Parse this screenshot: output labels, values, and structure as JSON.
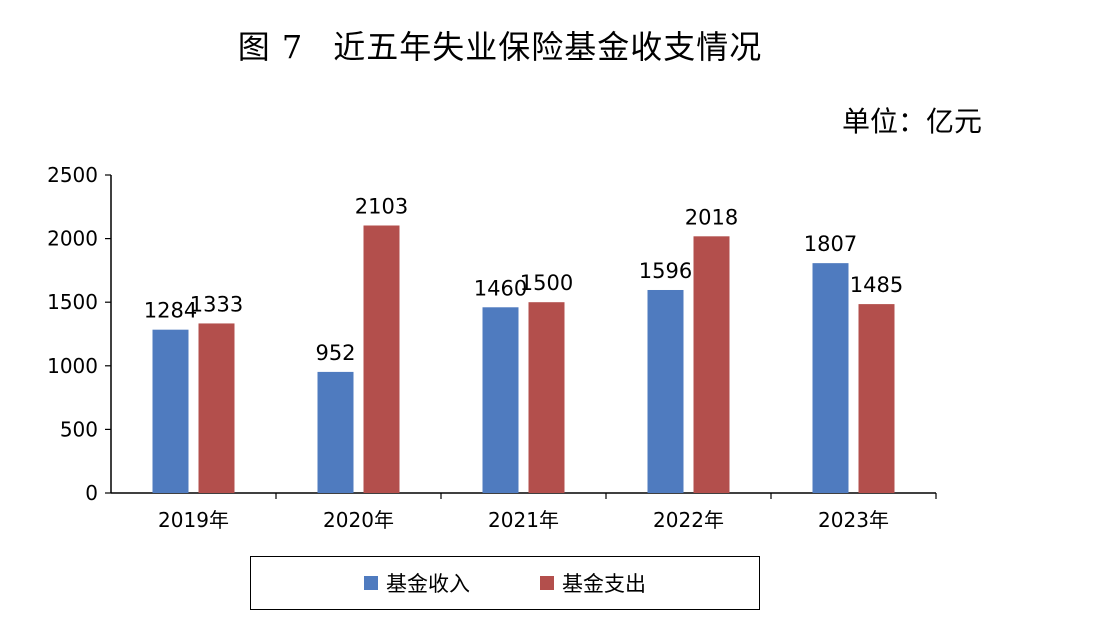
{
  "title": {
    "figure": "图 7",
    "text": "近五年失业保险基金收支情况"
  },
  "unit": "单位：亿元",
  "colors": {
    "income": "#4f7bbf",
    "expense": "#b34f4c"
  },
  "chart_data": {
    "type": "bar",
    "categories": [
      "2019年",
      "2020年",
      "2021年",
      "2022年",
      "2023年"
    ],
    "series": [
      {
        "name": "基金收入",
        "values": [
          1284,
          952,
          1460,
          1596,
          1807
        ]
      },
      {
        "name": "基金支出",
        "values": [
          1333,
          2103,
          1500,
          2018,
          1485
        ]
      }
    ],
    "ylim": [
      0,
      2500
    ],
    "yticks": [
      0,
      500,
      1000,
      1500,
      2000,
      2500
    ],
    "legend": "bottom",
    "grid": false
  }
}
